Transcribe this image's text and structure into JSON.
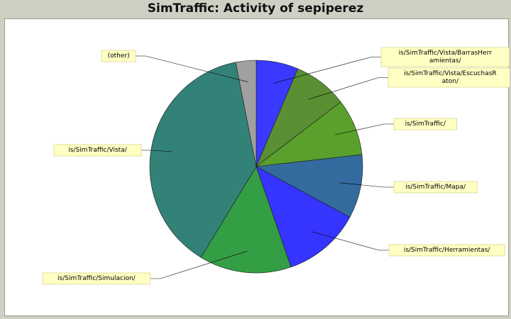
{
  "chart_data": {
    "type": "pie",
    "title": "SimTraffic: Activity of sepiperez",
    "slices": [
      {
        "label": "is/SimTraffic/Vista/BarrasHerramientas/",
        "label_lines": [
          "is/SimTraffic/Vista/BarrasHerr",
          "amientas/"
        ],
        "value": 6.4,
        "color": "#3a3aff"
      },
      {
        "label": "is/SimTraffic/Vista/EscuchasRaton/",
        "label_lines": [
          "is/SimTraffic/Vista/EscuchasR",
          "aton/"
        ],
        "value": 8.2,
        "color": "#5a8f33"
      },
      {
        "label": "is/SimTraffic/",
        "label_lines": [
          "is/SimTraffic/"
        ],
        "value": 8.6,
        "color": "#5aa02c"
      },
      {
        "label": "is/SimTraffic/Mapa/",
        "label_lines": [
          "is/SimTraffic/Mapa/"
        ],
        "value": 9.7,
        "color": "#336b9e"
      },
      {
        "label": "is/SimTraffic/Herramientas/",
        "label_lines": [
          "is/SimTraffic/Herramientas/"
        ],
        "value": 11.8,
        "color": "#3535ff"
      },
      {
        "label": "is/SimTraffic/Simulacion/",
        "label_lines": [
          "is/SimTraffic/Simulacion/"
        ],
        "value": 14.0,
        "color": "#339e44"
      },
      {
        "label": "is/SimTraffic/Vista/",
        "label_lines": [
          "is/SimTraffic/Vista/"
        ],
        "value": 38.2,
        "color": "#338277"
      },
      {
        "label": "(other)",
        "label_lines": [
          "(other)"
        ],
        "value": 3.1,
        "color": "#a0a0a0"
      }
    ]
  }
}
